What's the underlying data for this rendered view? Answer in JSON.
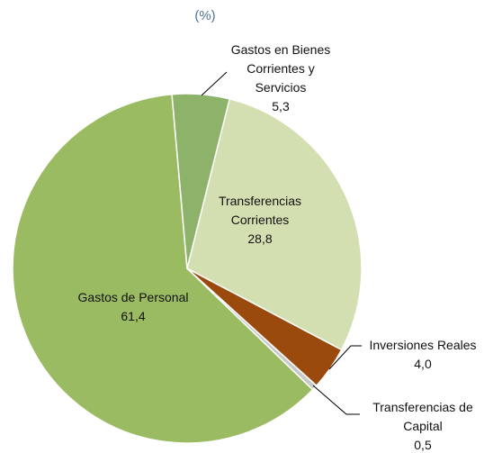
{
  "chart_data": {
    "type": "pie",
    "title": "(%)",
    "categories": [
      "Gastos en Bienes Corrientes y Servicios",
      "Transferencias Corrientes",
      "Inversiones Reales",
      "Transferencias de Capital",
      "Gastos de Personal"
    ],
    "values": [
      5.3,
      28.8,
      4.0,
      0.5,
      61.4
    ],
    "value_labels": [
      "5,3",
      "28,8",
      "4,0",
      "0,5",
      "61,4"
    ],
    "colors": [
      "#8db36b",
      "#d3dfb0",
      "#9a4a0c",
      "#c8c8c8",
      "#9bbb62"
    ]
  }
}
